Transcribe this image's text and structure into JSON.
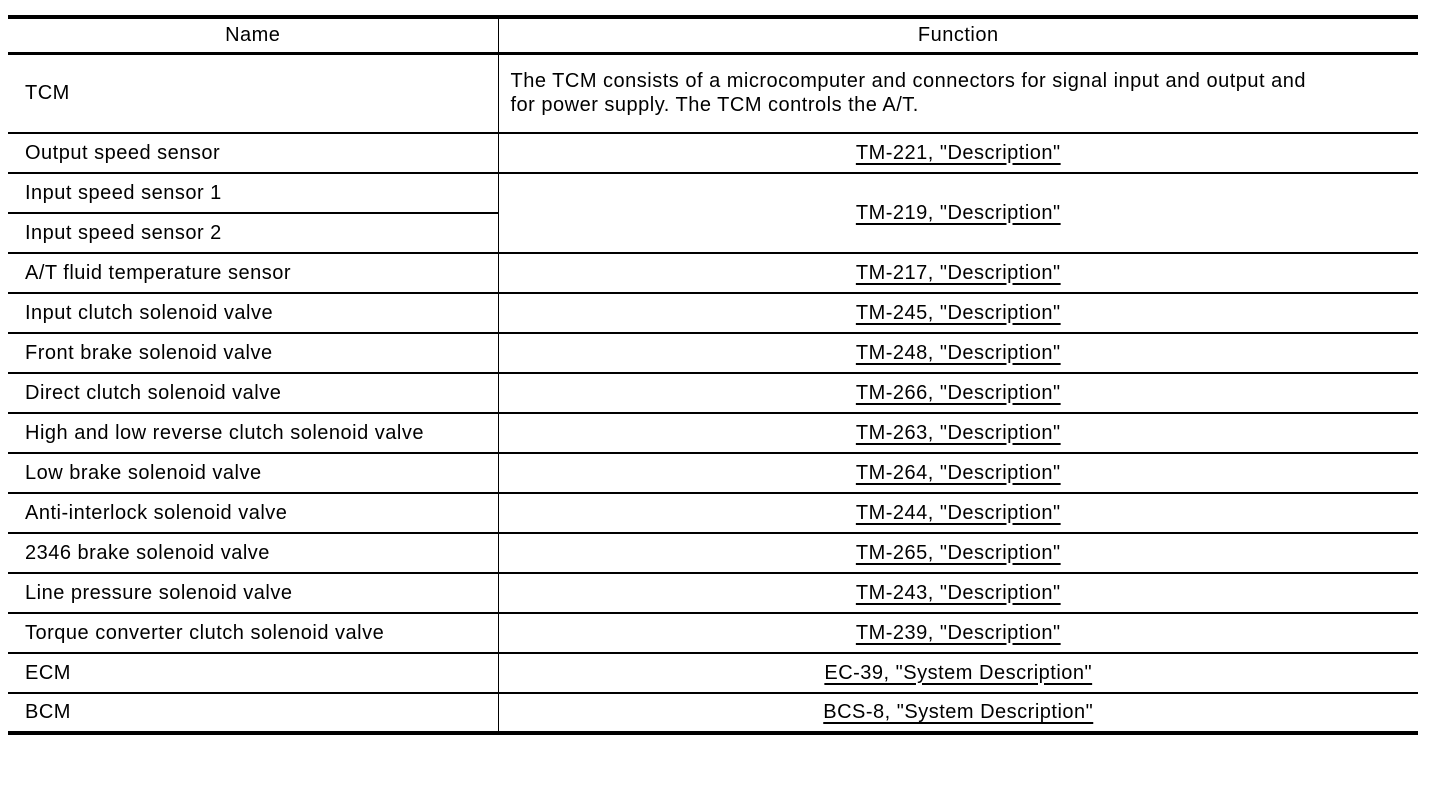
{
  "table": {
    "header": {
      "name": "Name",
      "function": "Function"
    },
    "rows": {
      "tcm": {
        "name": "TCM",
        "function": "The TCM consists of a microcomputer and connectors for signal input and output and for power supply. The TCM controls the A/T."
      },
      "output_speed_sensor": {
        "name": "Output speed sensor",
        "link": "TM-221, \"Description\""
      },
      "input_speed_sensor_1": {
        "name": "Input speed sensor 1"
      },
      "input_speed_sensor_2": {
        "name": "Input speed sensor 2"
      },
      "input_speed_sensors": {
        "link": "TM-219, \"Description\""
      },
      "at_fluid_temperature_sensor": {
        "name": "A/T fluid temperature sensor",
        "link": "TM-217, \"Description\""
      },
      "input_clutch_solenoid_valve": {
        "name": "Input clutch solenoid valve",
        "link": "TM-245, \"Description\""
      },
      "front_brake_solenoid_valve": {
        "name": "Front brake solenoid valve",
        "link": "TM-248, \"Description\""
      },
      "direct_clutch_solenoid_valve": {
        "name": "Direct clutch solenoid valve",
        "link": "TM-266, \"Description\""
      },
      "high_low_reverse_clutch_solenoid_valve": {
        "name": "High and low reverse clutch solenoid valve",
        "link": "TM-263, \"Description\""
      },
      "low_brake_solenoid_valve": {
        "name": "Low brake solenoid valve",
        "link": "TM-264, \"Description\""
      },
      "anti_interlock_solenoid_valve": {
        "name": "Anti-interlock solenoid valve",
        "link": "TM-244, \"Description\""
      },
      "brake_2346_solenoid_valve": {
        "name": "2346 brake solenoid valve",
        "link": "TM-265, \"Description\""
      },
      "line_pressure_solenoid_valve": {
        "name": "Line pressure solenoid valve",
        "link": "TM-243, \"Description\""
      },
      "torque_converter_clutch_solenoid_valve": {
        "name": "Torque converter clutch solenoid valve",
        "link": "TM-239, \"Description\""
      },
      "ecm": {
        "name": "ECM",
        "link": "EC-39, \"System Description\""
      },
      "bcm": {
        "name": "BCM",
        "link": "BCS-8, \"System Description\""
      }
    }
  },
  "colors": {
    "border": "#000000",
    "background": "#ffffff",
    "text": "#000000",
    "link": "#000000"
  }
}
